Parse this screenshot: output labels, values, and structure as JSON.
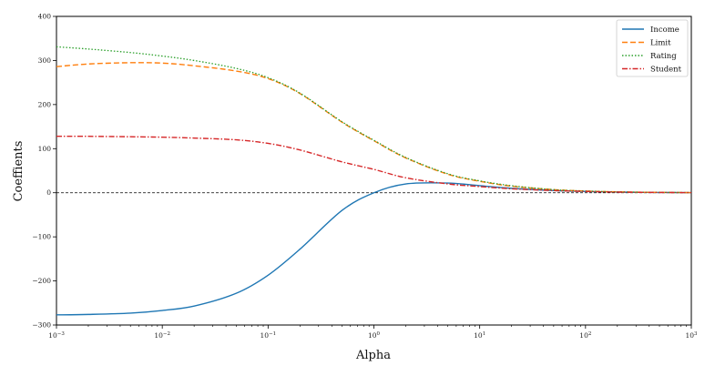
{
  "chart_data": {
    "type": "line",
    "title": "",
    "xlabel": "Alpha",
    "ylabel": "Coeffients",
    "xscale": "log",
    "xlim": [
      0.001,
      1000
    ],
    "ylim": [
      -300,
      400
    ],
    "grid": false,
    "legend_position": "top-right",
    "x_ticks": [
      {
        "value": 0.001,
        "base": "10",
        "exp": "−3"
      },
      {
        "value": 0.01,
        "base": "10",
        "exp": "−2"
      },
      {
        "value": 0.1,
        "base": "10",
        "exp": "−1"
      },
      {
        "value": 1,
        "base": "10",
        "exp": "0"
      },
      {
        "value": 10,
        "base": "10",
        "exp": "1"
      },
      {
        "value": 100,
        "base": "10",
        "exp": "2"
      },
      {
        "value": 1000,
        "base": "10",
        "exp": "3"
      }
    ],
    "y_ticks": [
      {
        "value": -300,
        "label": "−300"
      },
      {
        "value": -200,
        "label": "−200"
      },
      {
        "value": -100,
        "label": "−100"
      },
      {
        "value": 0,
        "label": "0"
      },
      {
        "value": 100,
        "label": "100"
      },
      {
        "value": 200,
        "label": "200"
      },
      {
        "value": 300,
        "label": "300"
      },
      {
        "value": 400,
        "label": "400"
      }
    ],
    "reference_line": {
      "y": 0,
      "color": "#000000",
      "style": "dashed"
    },
    "x": [
      0.001,
      0.002,
      0.005,
      0.01,
      0.02,
      0.05,
      0.1,
      0.2,
      0.5,
      1,
      2,
      5,
      10,
      20,
      50,
      100,
      200,
      500,
      1000
    ],
    "series": [
      {
        "name": "Income",
        "color": "#1f77b4",
        "style": "solid",
        "values": [
          -277,
          -276,
          -273,
          -267,
          -257,
          -228,
          -187,
          -128,
          -40,
          0,
          20,
          22,
          16,
          10,
          5,
          3,
          1.5,
          0.6,
          0.3
        ]
      },
      {
        "name": "Limit",
        "color": "#ff7f0e",
        "style": "dashed",
        "values": [
          286,
          292,
          295,
          294,
          288,
          276,
          259,
          225,
          160,
          118,
          79,
          42,
          26,
          15,
          7,
          4,
          2,
          0.8,
          0.4
        ]
      },
      {
        "name": "Rating",
        "color": "#2ca02c",
        "style": "dotted",
        "values": [
          331,
          326,
          318,
          310,
          300,
          282,
          261,
          226,
          161,
          119,
          80,
          43,
          27,
          16,
          7,
          4,
          2,
          0.8,
          0.4
        ]
      },
      {
        "name": "Student",
        "color": "#d62728",
        "style": "dashdot",
        "values": [
          128,
          128,
          127,
          126,
          124,
          120,
          112,
          97,
          70,
          53,
          34,
          20,
          14,
          9,
          5,
          3,
          1.5,
          0.6,
          0.3
        ]
      }
    ]
  }
}
